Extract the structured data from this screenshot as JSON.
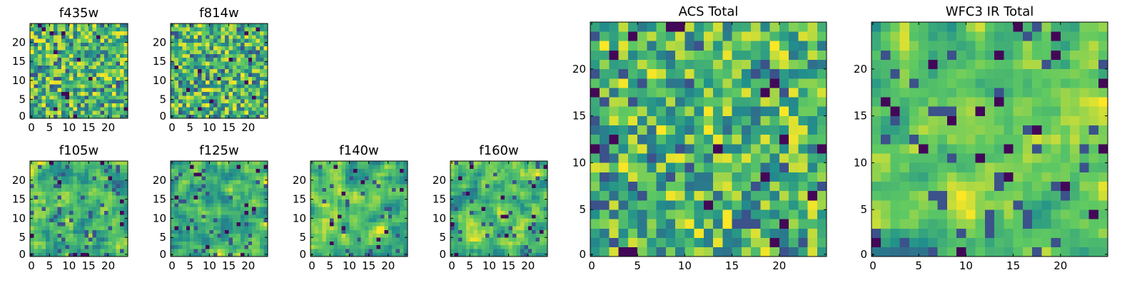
{
  "figure": {
    "colormap": "viridis",
    "colormap_stops": [
      "#440154",
      "#3b528b",
      "#21918c",
      "#5ec962",
      "#fde725"
    ]
  },
  "chart_data": [
    {
      "type": "heatmap",
      "title": "f435w",
      "xticks": [
        0,
        5,
        10,
        15,
        20
      ],
      "yticks": [
        0,
        5,
        10,
        15,
        20
      ],
      "xlim": [
        0,
        25
      ],
      "ylim": [
        0,
        25
      ],
      "grid": false,
      "seed": 11,
      "smooth": 0
    },
    {
      "type": "heatmap",
      "title": "f814w",
      "xticks": [
        0,
        5,
        10,
        15,
        20
      ],
      "yticks": [
        0,
        5,
        10,
        15,
        20
      ],
      "xlim": [
        0,
        25
      ],
      "ylim": [
        0,
        25
      ],
      "grid": false,
      "seed": 23,
      "smooth": 0
    },
    {
      "type": "heatmap",
      "title": "f105w",
      "xticks": [
        0,
        5,
        10,
        15,
        20
      ],
      "yticks": [
        0,
        5,
        10,
        15,
        20
      ],
      "xlim": [
        0,
        25
      ],
      "ylim": [
        0,
        25
      ],
      "grid": false,
      "seed": 37,
      "smooth": 1
    },
    {
      "type": "heatmap",
      "title": "f125w",
      "xticks": [
        0,
        5,
        10,
        15,
        20
      ],
      "yticks": [
        0,
        5,
        10,
        15,
        20
      ],
      "xlim": [
        0,
        25
      ],
      "ylim": [
        0,
        25
      ],
      "grid": false,
      "seed": 41,
      "smooth": 1
    },
    {
      "type": "heatmap",
      "title": "f140w",
      "xticks": [
        0,
        5,
        10,
        15,
        20
      ],
      "yticks": [
        0,
        5,
        10,
        15,
        20
      ],
      "xlim": [
        0,
        25
      ],
      "ylim": [
        0,
        25
      ],
      "grid": false,
      "seed": 53,
      "smooth": 1
    },
    {
      "type": "heatmap",
      "title": "f160w",
      "xticks": [
        0,
        5,
        10,
        15,
        20
      ],
      "yticks": [
        0,
        5,
        10,
        15,
        20
      ],
      "xlim": [
        0,
        25
      ],
      "ylim": [
        0,
        25
      ],
      "grid": false,
      "seed": 67,
      "smooth": 1
    },
    {
      "type": "heatmap",
      "title": "ACS Total",
      "xticks": [
        0,
        5,
        10,
        15,
        20
      ],
      "yticks": [
        0,
        5,
        10,
        15,
        20
      ],
      "xlim": [
        0,
        25
      ],
      "ylim": [
        0,
        25
      ],
      "grid": false,
      "seed": 79,
      "smooth": 0
    },
    {
      "type": "heatmap",
      "title": "WFC3 IR Total",
      "xticks": [
        0,
        5,
        10,
        15,
        20
      ],
      "yticks": [
        0,
        5,
        10,
        15,
        20
      ],
      "xlim": [
        0,
        25
      ],
      "ylim": [
        0,
        25
      ],
      "grid": false,
      "seed": 97,
      "smooth": 1
    }
  ]
}
